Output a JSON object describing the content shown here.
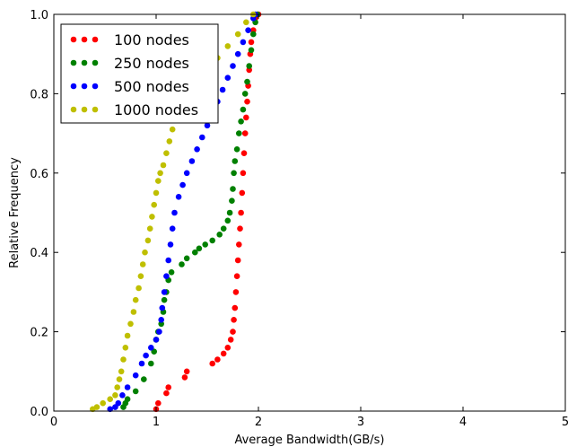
{
  "chart_data": {
    "type": "scatter",
    "title": "",
    "xlabel": "Average Bandwidth(GB/s)",
    "ylabel": "Relative Frequency",
    "xlim": [
      0,
      5
    ],
    "ylim": [
      0,
      1.0
    ],
    "xticks": [
      "0",
      "1",
      "2",
      "3",
      "4",
      "5"
    ],
    "yticks": [
      "0.0",
      "0.2",
      "0.4",
      "0.6",
      "0.8",
      "1.0"
    ],
    "grid": false,
    "legend_position": "top-left",
    "series": [
      {
        "name": "100 nodes",
        "color": "#ff0000",
        "points": [
          [
            1.0,
            0.005
          ],
          [
            1.02,
            0.02
          ],
          [
            1.1,
            0.045
          ],
          [
            1.12,
            0.06
          ],
          [
            1.28,
            0.085
          ],
          [
            1.3,
            0.1
          ],
          [
            1.55,
            0.12
          ],
          [
            1.6,
            0.13
          ],
          [
            1.66,
            0.145
          ],
          [
            1.7,
            0.16
          ],
          [
            1.73,
            0.18
          ],
          [
            1.75,
            0.2
          ],
          [
            1.76,
            0.23
          ],
          [
            1.77,
            0.26
          ],
          [
            1.78,
            0.3
          ],
          [
            1.79,
            0.34
          ],
          [
            1.8,
            0.38
          ],
          [
            1.81,
            0.42
          ],
          [
            1.82,
            0.46
          ],
          [
            1.83,
            0.5
          ],
          [
            1.84,
            0.55
          ],
          [
            1.85,
            0.6
          ],
          [
            1.86,
            0.65
          ],
          [
            1.87,
            0.7
          ],
          [
            1.88,
            0.74
          ],
          [
            1.89,
            0.78
          ],
          [
            1.9,
            0.82
          ],
          [
            1.91,
            0.86
          ],
          [
            1.92,
            0.9
          ],
          [
            1.93,
            0.93
          ],
          [
            1.95,
            0.96
          ],
          [
            1.97,
            0.99
          ],
          [
            2.0,
            1.0
          ]
        ]
      },
      {
        "name": "250 nodes",
        "color": "#008000",
        "points": [
          [
            0.68,
            0.01
          ],
          [
            0.7,
            0.02
          ],
          [
            0.72,
            0.03
          ],
          [
            0.8,
            0.05
          ],
          [
            0.88,
            0.08
          ],
          [
            0.95,
            0.12
          ],
          [
            0.98,
            0.15
          ],
          [
            1.0,
            0.18
          ],
          [
            1.02,
            0.2
          ],
          [
            1.05,
            0.22
          ],
          [
            1.07,
            0.25
          ],
          [
            1.08,
            0.28
          ],
          [
            1.1,
            0.3
          ],
          [
            1.12,
            0.33
          ],
          [
            1.15,
            0.35
          ],
          [
            1.25,
            0.37
          ],
          [
            1.3,
            0.385
          ],
          [
            1.38,
            0.4
          ],
          [
            1.42,
            0.41
          ],
          [
            1.48,
            0.42
          ],
          [
            1.55,
            0.43
          ],
          [
            1.62,
            0.445
          ],
          [
            1.66,
            0.46
          ],
          [
            1.7,
            0.48
          ],
          [
            1.72,
            0.5
          ],
          [
            1.74,
            0.53
          ],
          [
            1.75,
            0.56
          ],
          [
            1.76,
            0.6
          ],
          [
            1.77,
            0.63
          ],
          [
            1.79,
            0.66
          ],
          [
            1.81,
            0.7
          ],
          [
            1.83,
            0.73
          ],
          [
            1.85,
            0.76
          ],
          [
            1.87,
            0.8
          ],
          [
            1.89,
            0.83
          ],
          [
            1.91,
            0.87
          ],
          [
            1.93,
            0.91
          ],
          [
            1.95,
            0.95
          ],
          [
            1.97,
            0.98
          ],
          [
            1.99,
            1.0
          ]
        ]
      },
      {
        "name": "500 nodes",
        "color": "#0000ff",
        "points": [
          [
            0.55,
            0.005
          ],
          [
            0.6,
            0.01
          ],
          [
            0.63,
            0.02
          ],
          [
            0.67,
            0.04
          ],
          [
            0.72,
            0.06
          ],
          [
            0.8,
            0.09
          ],
          [
            0.86,
            0.12
          ],
          [
            0.9,
            0.14
          ],
          [
            0.95,
            0.16
          ],
          [
            1.0,
            0.18
          ],
          [
            1.03,
            0.2
          ],
          [
            1.05,
            0.23
          ],
          [
            1.06,
            0.26
          ],
          [
            1.08,
            0.3
          ],
          [
            1.1,
            0.34
          ],
          [
            1.12,
            0.38
          ],
          [
            1.14,
            0.42
          ],
          [
            1.16,
            0.46
          ],
          [
            1.18,
            0.5
          ],
          [
            1.22,
            0.54
          ],
          [
            1.26,
            0.57
          ],
          [
            1.3,
            0.6
          ],
          [
            1.35,
            0.63
          ],
          [
            1.4,
            0.66
          ],
          [
            1.45,
            0.69
          ],
          [
            1.5,
            0.72
          ],
          [
            1.56,
            0.75
          ],
          [
            1.6,
            0.78
          ],
          [
            1.65,
            0.81
          ],
          [
            1.7,
            0.84
          ],
          [
            1.75,
            0.87
          ],
          [
            1.8,
            0.9
          ],
          [
            1.85,
            0.93
          ],
          [
            1.9,
            0.96
          ],
          [
            1.95,
            0.99
          ],
          [
            1.97,
            1.0
          ]
        ]
      },
      {
        "name": "1000 nodes",
        "color": "#bfbf00",
        "points": [
          [
            0.38,
            0.005
          ],
          [
            0.42,
            0.01
          ],
          [
            0.48,
            0.02
          ],
          [
            0.55,
            0.03
          ],
          [
            0.6,
            0.04
          ],
          [
            0.62,
            0.06
          ],
          [
            0.64,
            0.08
          ],
          [
            0.66,
            0.1
          ],
          [
            0.68,
            0.13
          ],
          [
            0.7,
            0.16
          ],
          [
            0.72,
            0.19
          ],
          [
            0.75,
            0.22
          ],
          [
            0.78,
            0.25
          ],
          [
            0.8,
            0.28
          ],
          [
            0.83,
            0.31
          ],
          [
            0.85,
            0.34
          ],
          [
            0.87,
            0.37
          ],
          [
            0.89,
            0.4
          ],
          [
            0.92,
            0.43
          ],
          [
            0.94,
            0.46
          ],
          [
            0.96,
            0.49
          ],
          [
            0.98,
            0.52
          ],
          [
            1.0,
            0.55
          ],
          [
            1.02,
            0.58
          ],
          [
            1.04,
            0.6
          ],
          [
            1.07,
            0.62
          ],
          [
            1.1,
            0.65
          ],
          [
            1.13,
            0.68
          ],
          [
            1.16,
            0.71
          ],
          [
            1.2,
            0.74
          ],
          [
            1.25,
            0.77
          ],
          [
            1.3,
            0.8
          ],
          [
            1.4,
            0.83
          ],
          [
            1.5,
            0.86
          ],
          [
            1.6,
            0.89
          ],
          [
            1.7,
            0.92
          ],
          [
            1.8,
            0.95
          ],
          [
            1.88,
            0.98
          ],
          [
            1.95,
            1.0
          ]
        ]
      }
    ]
  }
}
